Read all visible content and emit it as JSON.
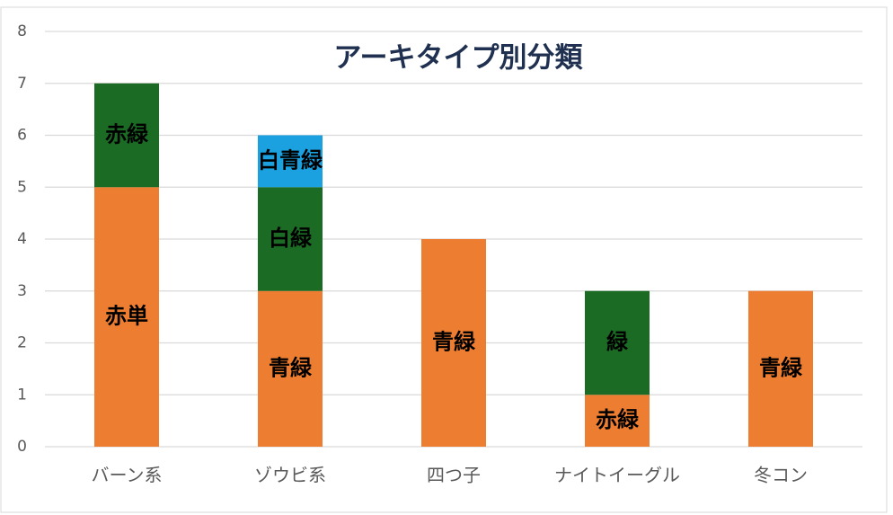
{
  "chart_data": {
    "type": "stacked_bar",
    "title": "アーキタイプ別分類",
    "categories": [
      "バーン系",
      "ゾウビ系",
      "四つ子",
      "ナイトイーグル",
      "冬コン"
    ],
    "series": [
      {
        "color": "#ed7d31",
        "values": [
          5,
          3,
          4,
          1,
          3
        ],
        "segment_labels": [
          "赤単",
          "青緑",
          "青緑",
          "赤緑",
          "青緑"
        ]
      },
      {
        "color": "#1b6b25",
        "values": [
          2,
          2,
          null,
          2,
          null
        ],
        "segment_labels": [
          "赤緑",
          "白緑",
          null,
          "緑",
          null
        ]
      },
      {
        "color": "#1ba1e0",
        "values": [
          null,
          1,
          null,
          null,
          null
        ],
        "segment_labels": [
          null,
          "白青緑",
          null,
          null,
          null
        ]
      }
    ],
    "ylim": [
      0,
      8
    ],
    "yticks": [
      0,
      1,
      2,
      3,
      4,
      5,
      6,
      7,
      8
    ],
    "grid": true
  }
}
